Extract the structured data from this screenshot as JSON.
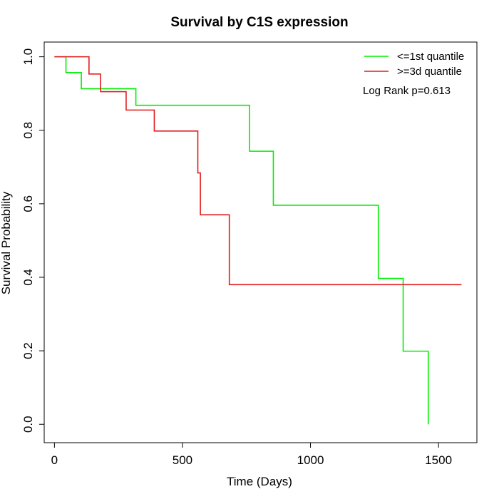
{
  "chart_data": {
    "type": "line",
    "title": "Survival by C1S expression",
    "xlabel": "Time (Days)",
    "ylabel": "Survival Probability",
    "xlim": [
      -40,
      1650
    ],
    "ylim": [
      -0.05,
      1.04
    ],
    "xticks": [
      0,
      500,
      1000,
      1500
    ],
    "yticks": [
      0.0,
      0.2,
      0.4,
      0.6,
      0.8,
      1.0
    ],
    "ytick_labels": [
      "0.0",
      "0.2",
      "0.4",
      "0.6",
      "0.8",
      "1.0"
    ],
    "grid": false,
    "legend_position": "top-right",
    "annotation": "Log Rank p=0.613",
    "series": [
      {
        "name": "<=1st quantile",
        "color": "#00ee00",
        "step": true,
        "x": [
          0,
          45,
          105,
          318,
          762,
          855,
          1265,
          1362,
          1460
        ],
        "y": [
          1.0,
          0.957,
          0.913,
          0.868,
          0.743,
          0.596,
          0.397,
          0.199,
          0.0
        ]
      },
      {
        "name": ">=3d quantile",
        "color": "#e31a1c",
        "step": true,
        "x": [
          0,
          135,
          180,
          280,
          390,
          560,
          570,
          683,
          1590
        ],
        "y": [
          1.0,
          0.953,
          0.905,
          0.855,
          0.798,
          0.684,
          0.57,
          0.38,
          0.38
        ]
      }
    ]
  }
}
